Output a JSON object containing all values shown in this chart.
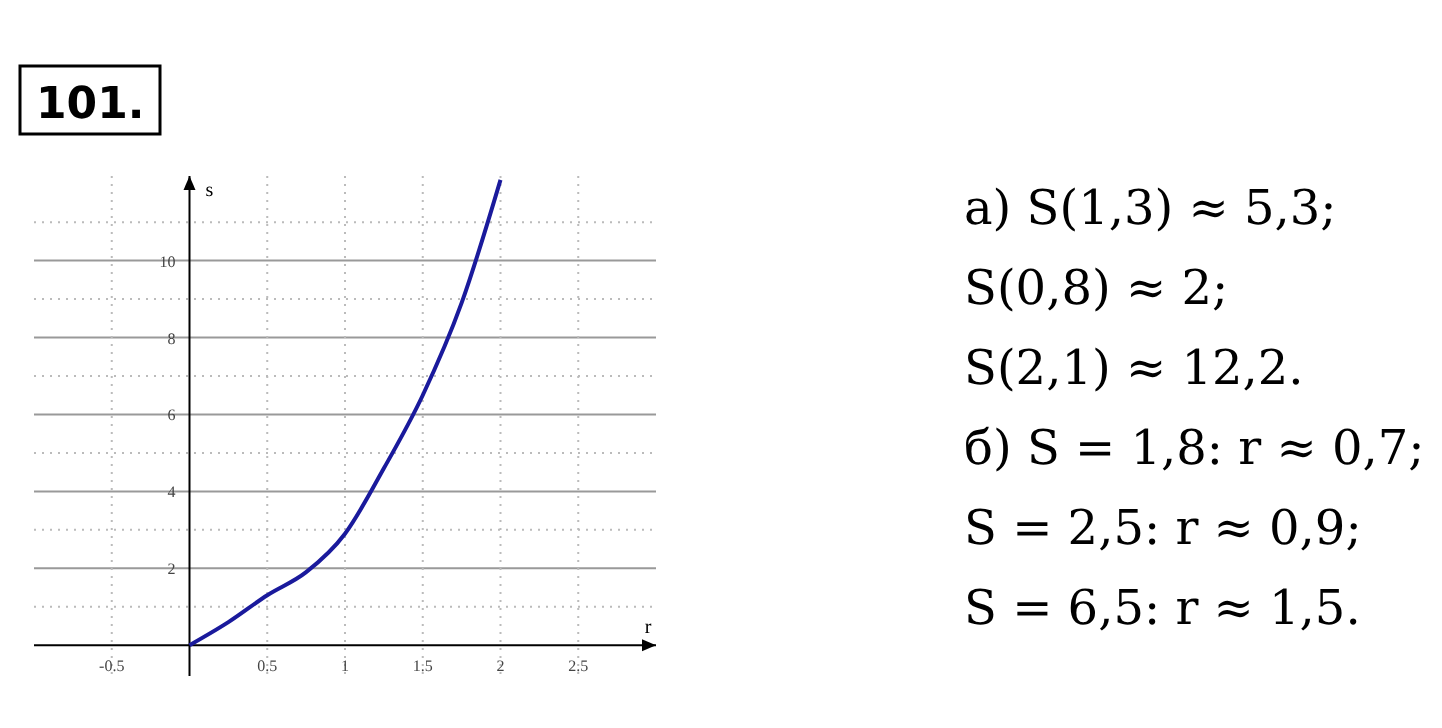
{
  "chart_data": {
    "type": "line",
    "title": "101.",
    "xlabel": "r",
    "ylabel": "s",
    "x": [
      0,
      0.25,
      0.5,
      0.75,
      1,
      1.25,
      1.5,
      1.75,
      2
    ],
    "series": [
      {
        "color": "#1a1a9c",
        "values": [
          0,
          0.6,
          1.3,
          1.9,
          2.9,
          4.6,
          6.5,
          8.9,
          12.1
        ]
      }
    ],
    "xlim": [
      -1,
      3
    ],
    "ylim": [
      -0.8,
      12.2
    ],
    "xticks": [
      -0.5,
      0.5,
      1,
      1.5,
      2,
      2.5
    ],
    "yticks": [
      {
        "value": 1,
        "label": null
      },
      2,
      {
        "value": 3,
        "label": null
      },
      4,
      {
        "value": 5,
        "label": null
      },
      6,
      {
        "value": 7,
        "label": null
      },
      8,
      {
        "value": 9,
        "label": null
      },
      10,
      {
        "value": 11,
        "label": null
      }
    ],
    "grid": true,
    "marker": "none",
    "line_style": "solid",
    "annotations": [
      "а) S(1,3) ≈ 5,3;",
      "S(0,8) ≈ 2;",
      "S(2,1) ≈ 12,2.",
      "б) S = 1,8:  r ≈ 0,7;",
      "S = 2,5:  r ≈ 0,9;",
      "S = 6,5:  r ≈ 1,5."
    ]
  }
}
